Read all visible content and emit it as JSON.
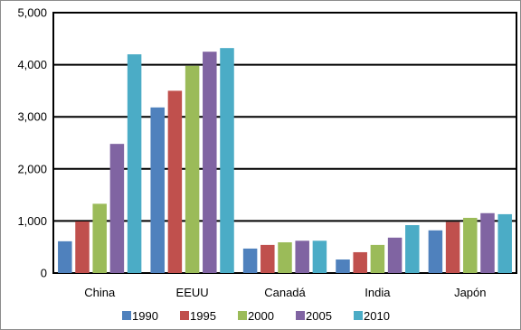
{
  "chart_data": {
    "type": "bar",
    "categories": [
      "China",
      "EEUU",
      "Canadá",
      "India",
      "Japón"
    ],
    "series": [
      {
        "name": "1990",
        "color": "#4f81bd",
        "values": [
          610,
          3180,
          470,
          260,
          820
        ]
      },
      {
        "name": "1995",
        "color": "#c0504d",
        "values": [
          990,
          3500,
          540,
          400,
          980
        ]
      },
      {
        "name": "2000",
        "color": "#9bbb59",
        "values": [
          1330,
          3980,
          590,
          540,
          1060
        ]
      },
      {
        "name": "2005",
        "color": "#8064a2",
        "values": [
          2480,
          4250,
          620,
          680,
          1150
        ]
      },
      {
        "name": "2010",
        "color": "#4bacc6",
        "values": [
          4200,
          4320,
          620,
          920,
          1130
        ]
      }
    ],
    "y_ticks": [
      "0",
      "1,000",
      "2,000",
      "3,000",
      "4,000",
      "5,000"
    ],
    "ylim": [
      0,
      5000
    ],
    "grid": true,
    "legend_position": "bottom",
    "title": "",
    "xlabel": "",
    "ylabel": ""
  }
}
